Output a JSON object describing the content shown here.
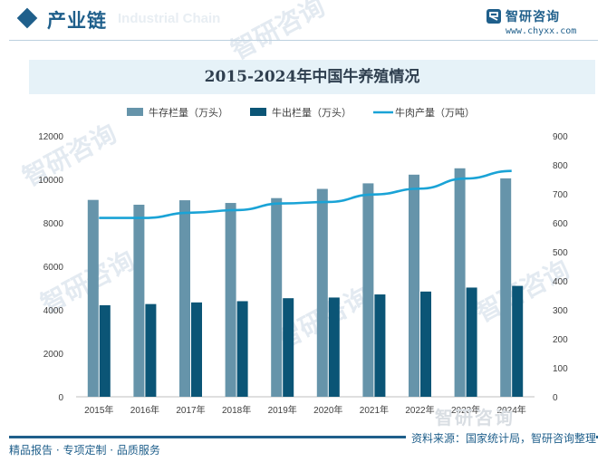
{
  "header": {
    "title": "产业链",
    "ghost_text": "Industrial Chain"
  },
  "brand": {
    "name": "智研咨询",
    "url": "www.chyxx.com",
    "color": "#1f5f8b"
  },
  "watermark": {
    "text": "智研咨询"
  },
  "footer": {
    "left": "精品报告 · 专项定制 · 品质服务",
    "source": "资料来源：国家统计局，智研咨询整理"
  },
  "chart_data": {
    "type": "bar",
    "title": "2015-2024年中国牛养殖情况",
    "categories": [
      "2015年",
      "2016年",
      "2017年",
      "2018年",
      "2019年",
      "2020年",
      "2021年",
      "2022年",
      "2023年",
      "2024年"
    ],
    "series": [
      {
        "name": "牛存栏量（万头）",
        "type": "bar",
        "axis": "left",
        "color": "#6694aa",
        "values": [
          9055,
          8834,
          9039,
          8915,
          9138,
          9562,
          9817,
          10216,
          10509,
          10047
        ]
      },
      {
        "name": "牛出栏量（万头）",
        "type": "bar",
        "axis": "left",
        "color": "#0b5576",
        "values": [
          4211,
          4265,
          4340,
          4397,
          4534,
          4565,
          4707,
          4840,
          5023,
          5100
        ]
      },
      {
        "name": "牛肉产量（万吨）",
        "type": "line",
        "axis": "right",
        "color": "#1aa3d6",
        "values": [
          617,
          617,
          635,
          644,
          667,
          672,
          698,
          718,
          753,
          779
        ]
      }
    ],
    "y_left": {
      "min": 0,
      "max": 12000,
      "ticks": [
        0,
        2000,
        4000,
        6000,
        8000,
        10000,
        12000
      ]
    },
    "y_right": {
      "min": 0,
      "max": 900,
      "ticks": [
        0,
        100,
        200,
        300,
        400,
        500,
        600,
        700,
        800,
        900
      ]
    },
    "legend_position": "top",
    "grid": false
  }
}
